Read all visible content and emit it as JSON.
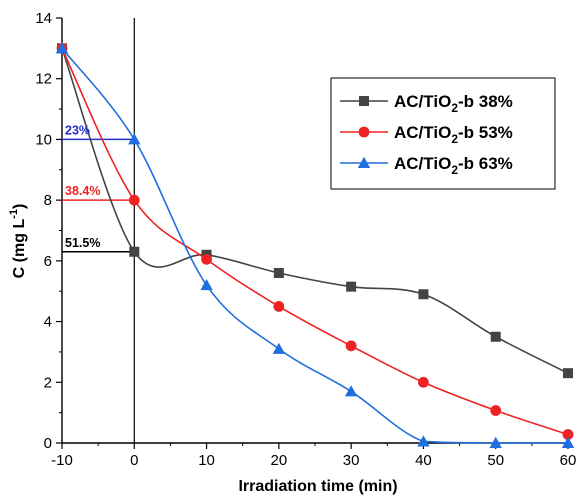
{
  "chart_data": {
    "type": "line",
    "xlabel": "Irradiation time (min)",
    "ylabel": "C (mg L",
    "ylabel_sup": "-1",
    "ylabel_close": ")",
    "xlim": [
      -10,
      60
    ],
    "ylim": [
      0,
      14
    ],
    "xticks": [
      -10,
      0,
      10,
      20,
      30,
      40,
      50,
      60
    ],
    "yticks": [
      0,
      2,
      4,
      6,
      8,
      10,
      12,
      14
    ],
    "grid": false,
    "legend_position": "top-right",
    "series": [
      {
        "name": "AC/TiO2-b 38%",
        "name_parts": {
          "pre": "AC/TiO",
          "sub": "2",
          "post": "-b 38%"
        },
        "color": "#444444",
        "marker": "square",
        "x": [
          -10,
          0,
          10,
          20,
          30,
          40,
          50,
          60
        ],
        "y": [
          13.0,
          6.3,
          6.2,
          5.6,
          5.15,
          4.9,
          3.5,
          2.3
        ]
      },
      {
        "name": "AC/TiO2-b 53%",
        "name_parts": {
          "pre": "AC/TiO",
          "sub": "2",
          "post": "-b 53%"
        },
        "color": "#ee2222",
        "marker": "circle",
        "x": [
          -10,
          0,
          10,
          20,
          30,
          40,
          50,
          60
        ],
        "y": [
          13.0,
          8.0,
          6.05,
          4.5,
          3.2,
          2.0,
          1.07,
          0.28
        ]
      },
      {
        "name": "AC/TiO2-b 63%",
        "name_parts": {
          "pre": "AC/TiO",
          "sub": "2",
          "post": "-b 63%"
        },
        "color": "#1f6fe0",
        "marker": "triangle",
        "x": [
          -10,
          0,
          10,
          20,
          30,
          40,
          50,
          60
        ],
        "y": [
          13.0,
          10.0,
          5.2,
          3.1,
          1.7,
          0.05,
          0.0,
          0.0
        ]
      }
    ],
    "annotations": [
      {
        "text": "23%",
        "color": "#2233cc",
        "y": 10.0
      },
      {
        "text": "38.4%",
        "color": "#ee2222",
        "y": 8.0
      },
      {
        "text": "51.5%",
        "color": "#000000",
        "y": 6.3
      }
    ]
  }
}
